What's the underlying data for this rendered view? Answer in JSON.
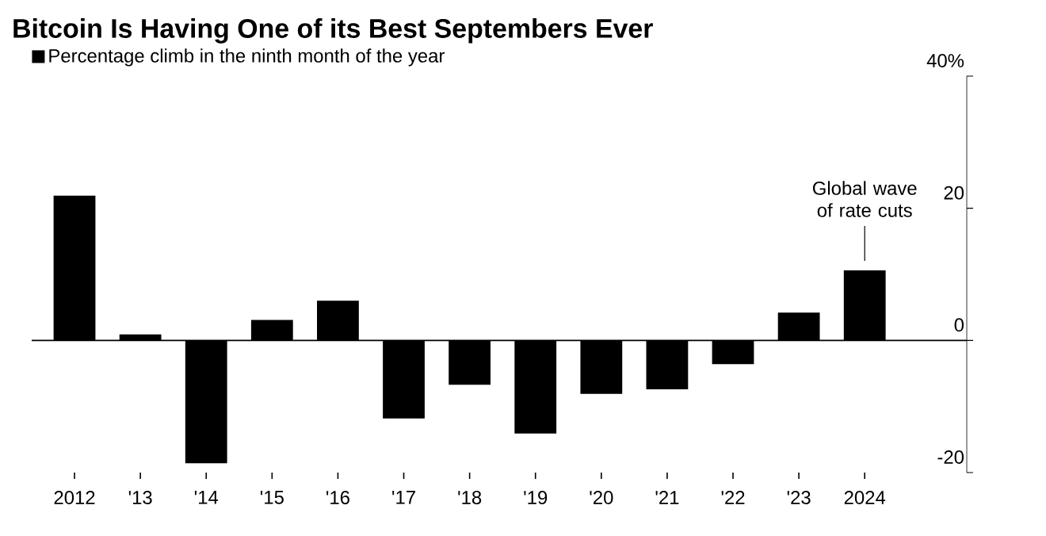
{
  "chart_data": {
    "type": "bar",
    "title": "Bitcoin Is Having One of its Best Septembers Ever",
    "categories": [
      "2012",
      "'13",
      "'14",
      "'15",
      "'16",
      "'17",
      "'18",
      "'19",
      "'20",
      "'21",
      "'22",
      "'23",
      "2024"
    ],
    "series": [
      {
        "name": "Percentage climb in the ninth month of the year",
        "color": "#000000",
        "values": [
          21.9,
          0.9,
          -18.6,
          3.1,
          6.0,
          -11.8,
          -6.7,
          -14.1,
          -8.1,
          -7.4,
          -3.6,
          4.2,
          10.6
        ]
      }
    ],
    "ylim": [
      -20,
      40
    ],
    "yticks": [
      {
        "value": -20,
        "label": "-20"
      },
      {
        "value": 0,
        "label": "0"
      },
      {
        "value": 20,
        "label": "20"
      },
      {
        "value": 40,
        "label": "40%"
      }
    ],
    "annotations": [
      {
        "text": "Global wave of rate cuts",
        "x": "2024",
        "y": 10.6
      }
    ],
    "ref_lines": [
      {
        "axis": "y",
        "value": 0,
        "color": "#000000"
      }
    ],
    "legend": "top left"
  }
}
